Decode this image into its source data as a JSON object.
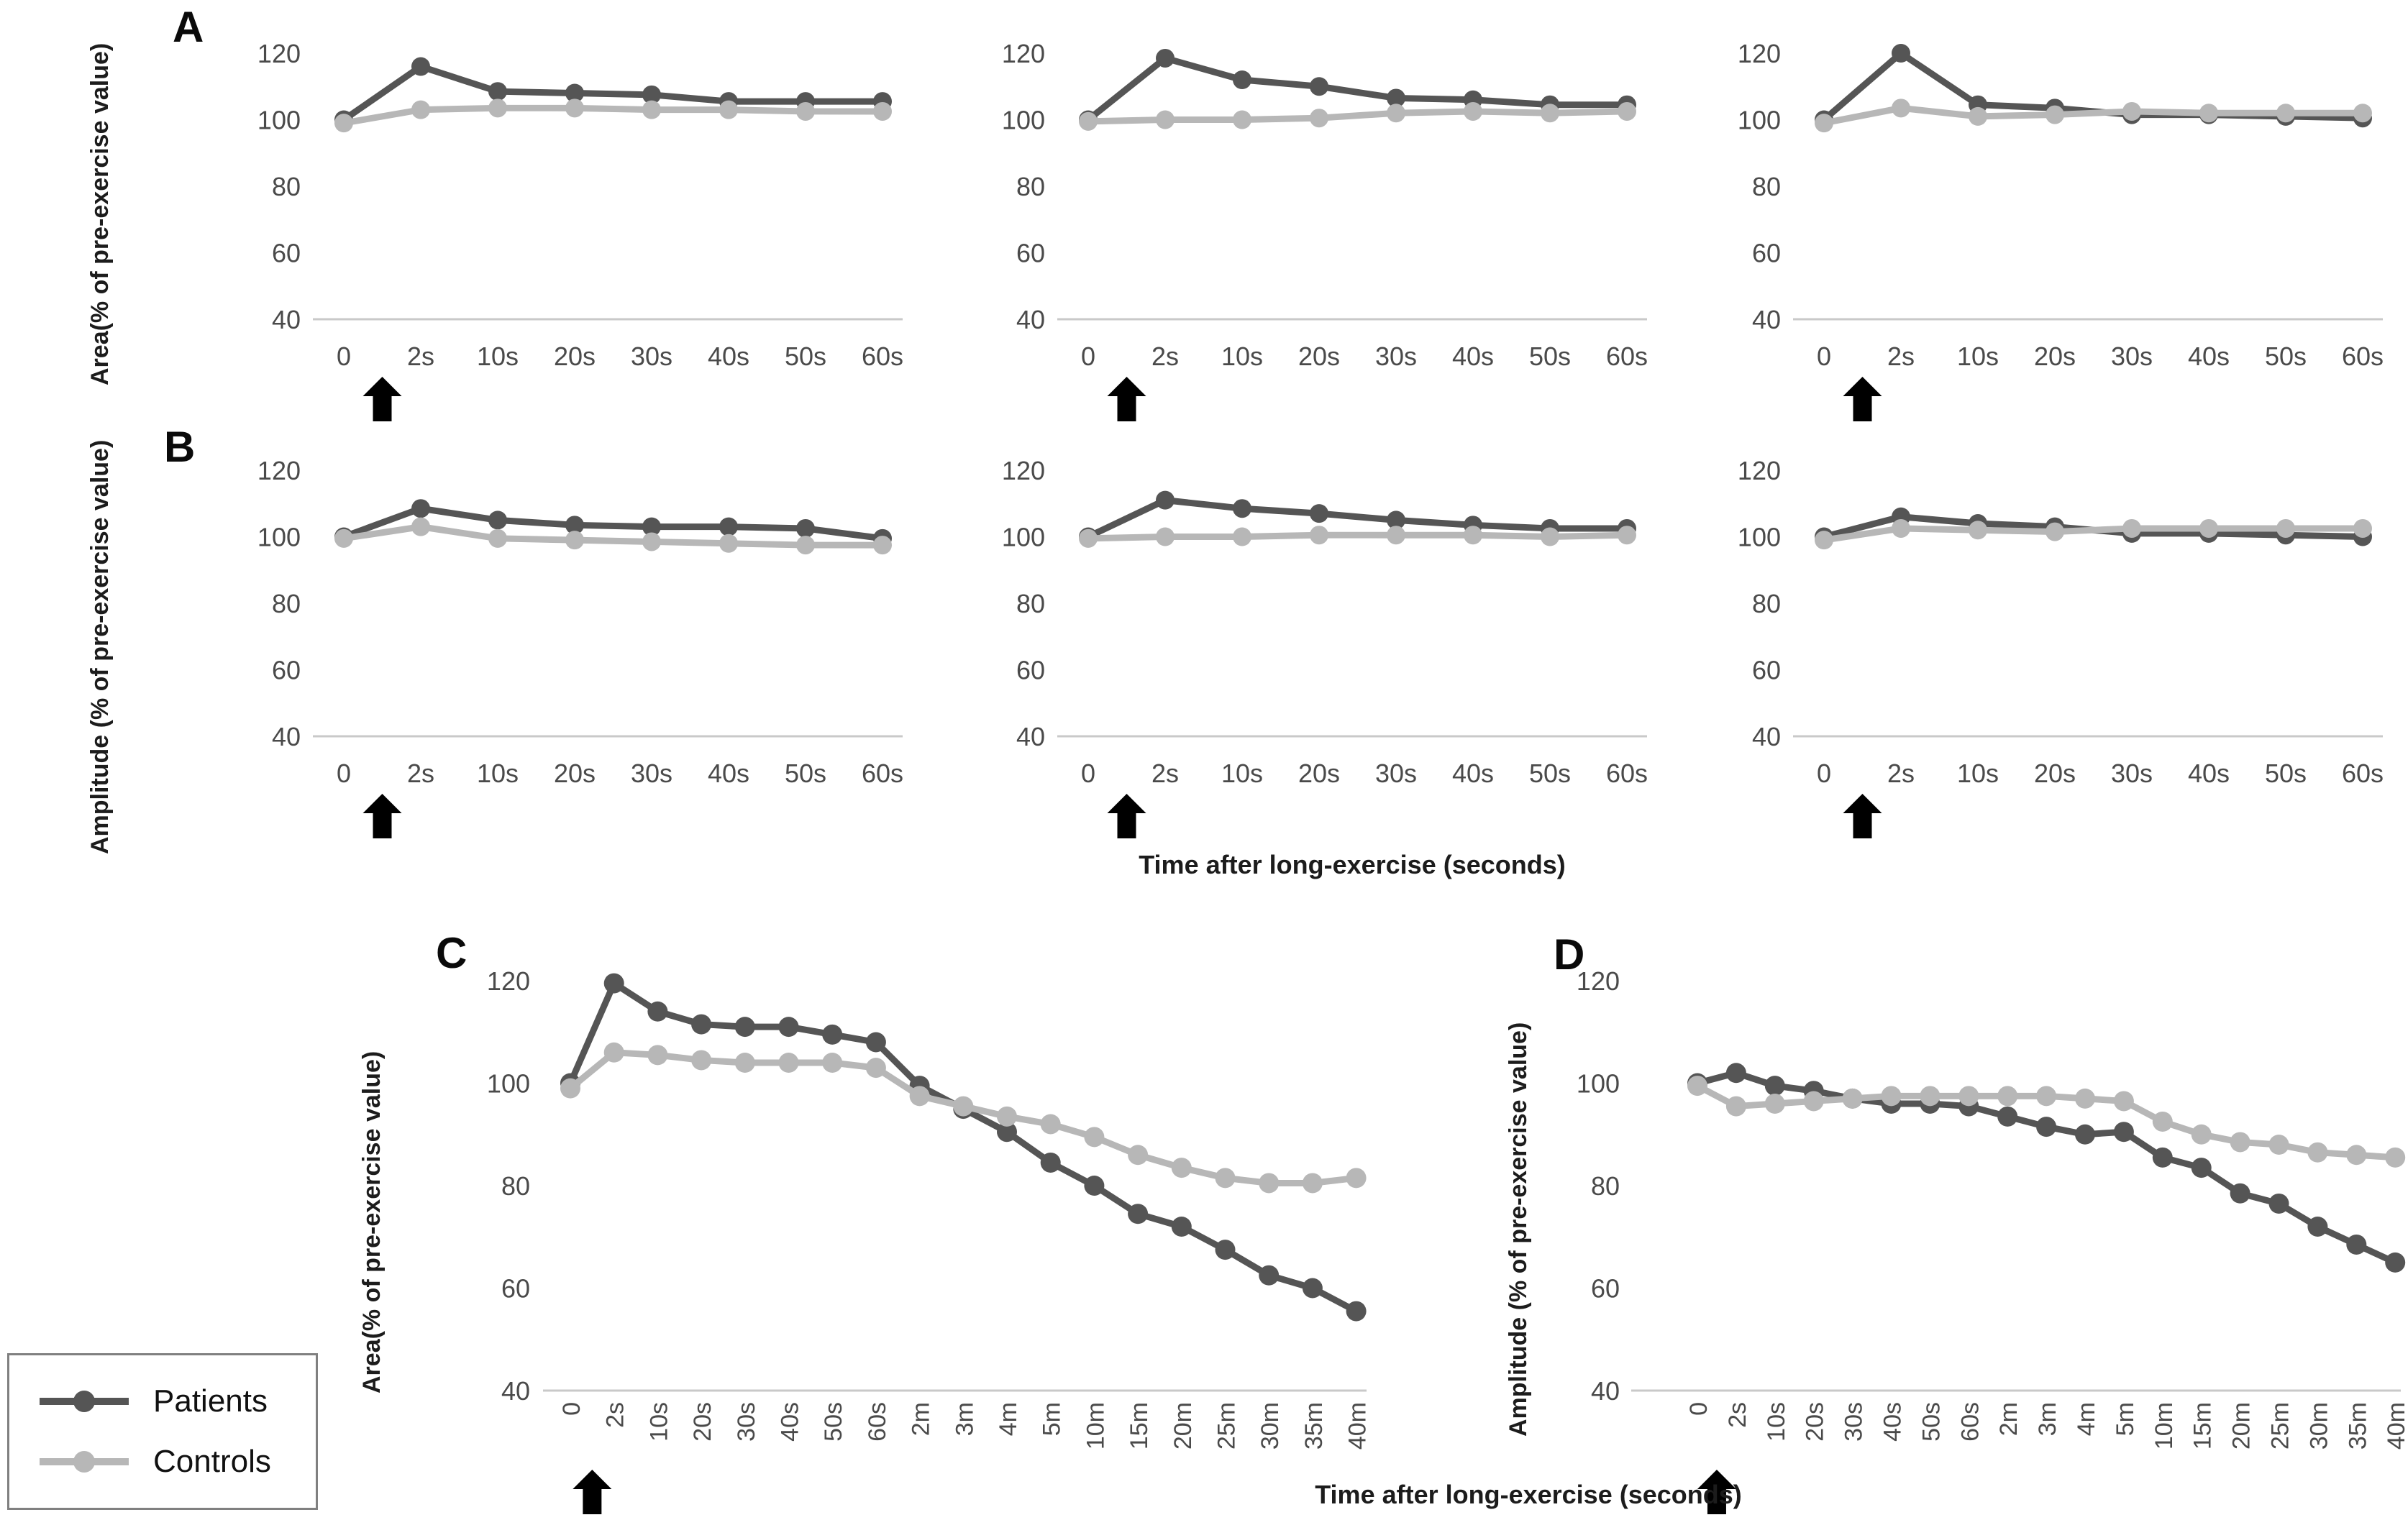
{
  "figure": {
    "colors": {
      "patients": "#555555",
      "controls": "#b7b7b7",
      "baseline_gridline": "#c9c9c9",
      "tick_text": "#4a4a4a",
      "text": "#111111",
      "legend_border": "#808080",
      "arrow": "#000000"
    },
    "legend": {
      "items": [
        {
          "label": "Patients",
          "color_key": "patients"
        },
        {
          "label": "Controls",
          "color_key": "controls"
        }
      ]
    },
    "panels": {
      "A": {
        "letter": "A",
        "ylabel": "Area(% of pre-exercise value)"
      },
      "B": {
        "letter": "B",
        "ylabel": "Amplitude (% of pre-exercise value)",
        "xlabel": "Time after long-exercise (seconds)"
      },
      "C": {
        "letter": "C",
        "ylabel": "Area(% of pre-exercise value)"
      },
      "D": {
        "letter": "D",
        "ylabel": "Amplitude (% of pre-exercise value)"
      },
      "bottom_xlabel": "Time after long-exercise (seconds)"
    }
  },
  "chart_data": [
    {
      "id": "A1",
      "panel": "A",
      "type": "line",
      "ylabel": "Area(% of pre-exercise value)",
      "yticks": [
        120,
        100,
        80,
        60,
        40
      ],
      "ylim": [
        40,
        125
      ],
      "categories": [
        "0",
        "2s",
        "10s",
        "20s",
        "30s",
        "40s",
        "50s",
        "60s"
      ],
      "series": [
        {
          "name": "Patients",
          "values": [
            100,
            116,
            108.5,
            108,
            107.5,
            105.5,
            105.5,
            105.5
          ]
        },
        {
          "name": "Controls",
          "values": [
            99,
            103,
            103.5,
            103.5,
            103,
            103,
            102.5,
            102.5
          ]
        }
      ],
      "arrow_between": [
        "0",
        "2s"
      ],
      "grid": "baseline-only",
      "legend_position": "none"
    },
    {
      "id": "A2",
      "panel": "A",
      "type": "line",
      "yticks": [
        120,
        100,
        80,
        60,
        40
      ],
      "ylim": [
        40,
        125
      ],
      "categories": [
        "0",
        "2s",
        "10s",
        "20s",
        "30s",
        "40s",
        "50s",
        "60s"
      ],
      "series": [
        {
          "name": "Patients",
          "values": [
            100,
            118.5,
            112,
            110,
            106.5,
            106,
            104.5,
            104.5
          ]
        },
        {
          "name": "Controls",
          "values": [
            99.5,
            100,
            100,
            100.5,
            102,
            102.5,
            102,
            102.5
          ]
        }
      ],
      "arrow_between": [
        "0",
        "2s"
      ],
      "grid": "baseline-only",
      "legend_position": "none"
    },
    {
      "id": "A3",
      "panel": "A",
      "type": "line",
      "yticks": [
        120,
        100,
        80,
        60,
        40
      ],
      "ylim": [
        40,
        125
      ],
      "categories": [
        "0",
        "2s",
        "10s",
        "20s",
        "30s",
        "40s",
        "50s",
        "60s"
      ],
      "series": [
        {
          "name": "Patients",
          "values": [
            100,
            120,
            104.5,
            103.5,
            101.5,
            101.5,
            101,
            100.5
          ]
        },
        {
          "name": "Controls",
          "values": [
            99,
            103.5,
            101,
            101.5,
            102.5,
            102,
            102,
            102
          ]
        }
      ],
      "arrow_between": [
        "0",
        "2s"
      ],
      "grid": "baseline-only",
      "legend_position": "none"
    },
    {
      "id": "B1",
      "panel": "B",
      "type": "line",
      "ylabel": "Amplitude (% of pre-exercise value)",
      "yticks": [
        120,
        100,
        80,
        60,
        40
      ],
      "ylim": [
        40,
        125
      ],
      "categories": [
        "0",
        "2s",
        "10s",
        "20s",
        "30s",
        "40s",
        "50s",
        "60s"
      ],
      "series": [
        {
          "name": "Patients",
          "values": [
            100,
            108.5,
            105,
            103.5,
            103,
            103,
            102.5,
            99.5
          ]
        },
        {
          "name": "Controls",
          "values": [
            99.5,
            103,
            99.5,
            99,
            98.5,
            98,
            97.5,
            97.5
          ]
        }
      ],
      "arrow_between": [
        "0",
        "2s"
      ],
      "grid": "baseline-only",
      "legend_position": "none"
    },
    {
      "id": "B2",
      "panel": "B",
      "type": "line",
      "xlabel": "Time after long-exercise (seconds)",
      "yticks": [
        120,
        100,
        80,
        60,
        40
      ],
      "ylim": [
        40,
        125
      ],
      "categories": [
        "0",
        "2s",
        "10s",
        "20s",
        "30s",
        "40s",
        "50s",
        "60s"
      ],
      "series": [
        {
          "name": "Patients",
          "values": [
            100,
            111,
            108.5,
            107,
            105,
            103.5,
            102.5,
            102.5
          ]
        },
        {
          "name": "Controls",
          "values": [
            99.5,
            100,
            100,
            100.5,
            100.5,
            100.5,
            100,
            100.5
          ]
        }
      ],
      "arrow_between": [
        "0",
        "2s"
      ],
      "grid": "baseline-only",
      "legend_position": "none"
    },
    {
      "id": "B3",
      "panel": "B",
      "type": "line",
      "yticks": [
        120,
        100,
        80,
        60,
        40
      ],
      "ylim": [
        40,
        125
      ],
      "categories": [
        "0",
        "2s",
        "10s",
        "20s",
        "30s",
        "40s",
        "50s",
        "60s"
      ],
      "series": [
        {
          "name": "Patients",
          "values": [
            100,
            106,
            104,
            103,
            101,
            101,
            100.5,
            100
          ]
        },
        {
          "name": "Controls",
          "values": [
            99,
            102.5,
            102,
            101.5,
            102.5,
            102.5,
            102.5,
            102.5
          ]
        }
      ],
      "arrow_between": [
        "0",
        "2s"
      ],
      "grid": "baseline-only",
      "legend_position": "none"
    },
    {
      "id": "C",
      "panel": "C",
      "type": "line",
      "ylabel": "Area(% of pre-exercise value)",
      "yticks": [
        120,
        100,
        80,
        60,
        40
      ],
      "ylim": [
        40,
        125
      ],
      "categories": [
        "0",
        "2s",
        "10s",
        "20s",
        "30s",
        "40s",
        "50s",
        "60s",
        "2m",
        "3m",
        "4m",
        "5m",
        "10m",
        "15m",
        "20m",
        "25m",
        "30m",
        "35m",
        "40m"
      ],
      "series": [
        {
          "name": "Patients",
          "values": [
            100,
            119.5,
            114,
            111.5,
            111,
            111,
            109.5,
            108,
            99.5,
            95,
            90.5,
            84.5,
            80,
            74.5,
            72,
            67.5,
            62.5,
            60,
            55.5
          ]
        },
        {
          "name": "Controls",
          "values": [
            99,
            106,
            105.5,
            104.5,
            104,
            104,
            104,
            103,
            97.5,
            95.5,
            93.5,
            92,
            89.5,
            86,
            83.5,
            81.5,
            80.5,
            80.5,
            81.5
          ]
        }
      ],
      "arrow_between": [
        "0",
        "2s"
      ],
      "grid": "baseline-only",
      "legend_position": "outside-bottom-left",
      "x_tick_rotation": 90
    },
    {
      "id": "D",
      "panel": "D",
      "type": "line",
      "ylabel": "Amplitude (% of pre-exercise value)",
      "xlabel": "Time after long-exercise (seconds)",
      "yticks": [
        120,
        100,
        80,
        60,
        40
      ],
      "ylim": [
        40,
        125
      ],
      "categories": [
        "0",
        "2s",
        "10s",
        "20s",
        "30s",
        "40s",
        "50s",
        "60s",
        "2m",
        "3m",
        "4m",
        "5m",
        "10m",
        "15m",
        "20m",
        "25m",
        "30m",
        "35m",
        "40m"
      ],
      "series": [
        {
          "name": "Patients",
          "values": [
            100,
            102,
            99.5,
            98.5,
            97,
            96,
            96,
            95.5,
            93.5,
            91.5,
            90,
            90.5,
            85.5,
            83.5,
            78.5,
            76.5,
            72,
            68.5,
            65
          ]
        },
        {
          "name": "Controls",
          "values": [
            99.5,
            95.5,
            96,
            96.5,
            97,
            97.5,
            97.5,
            97.5,
            97.5,
            97.5,
            97,
            96.5,
            92.5,
            90,
            88.5,
            88,
            86.5,
            86,
            85.5
          ]
        }
      ],
      "arrow_between": [
        "0",
        "2s"
      ],
      "grid": "baseline-only",
      "legend_position": "none",
      "x_tick_rotation": 90
    }
  ]
}
